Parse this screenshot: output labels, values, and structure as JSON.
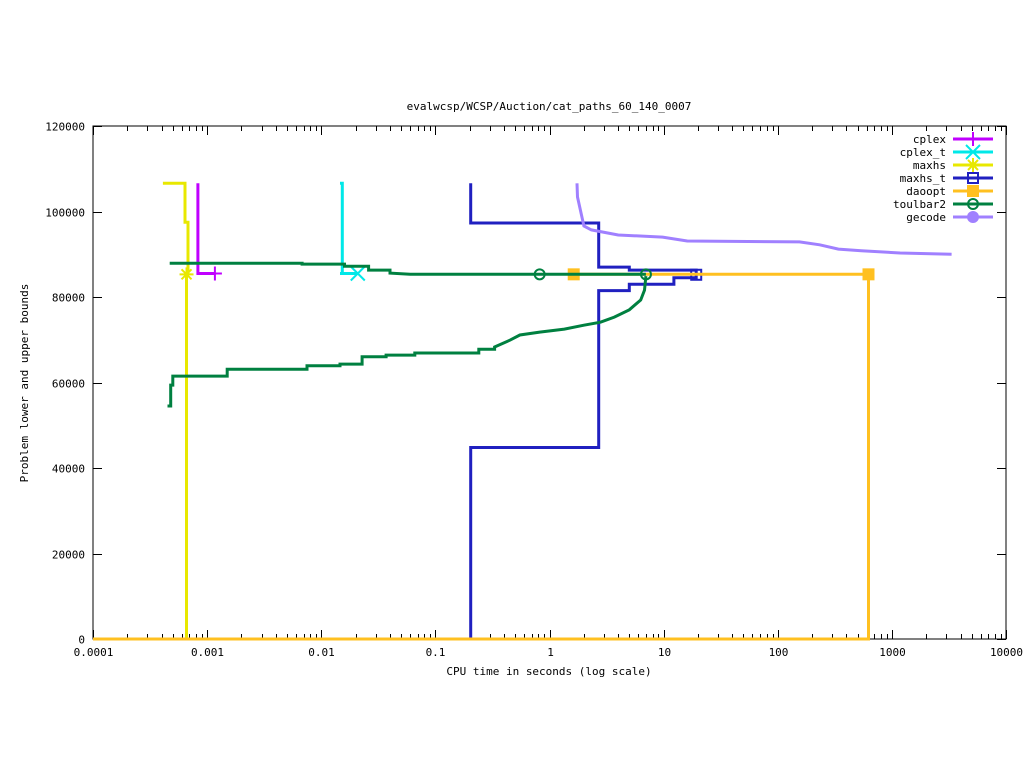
{
  "chart_data": {
    "type": "line",
    "title": "evalwcsp/WCSP/Auction/cat_paths_60_140_0007",
    "xlabel": "CPU time in seconds (log scale)",
    "ylabel": "Problem lower and upper bounds",
    "xscale": "log",
    "xlim": [
      0.0001,
      10000
    ],
    "ylim": [
      0,
      120000
    ],
    "xticks": [
      "0.0001",
      "0.001",
      "0.01",
      "0.1",
      "1",
      "10",
      "100",
      "1000",
      "10000"
    ],
    "yticks": [
      "0",
      "20000",
      "40000",
      "60000",
      "80000",
      "100000",
      "120000"
    ],
    "grid": false,
    "legend_position": "top-right",
    "series": [
      {
        "name": "cplex",
        "color": "#c000ff",
        "marker": "plus",
        "paths": [
          [
            [
              0.00083,
              106600
            ],
            [
              0.00083,
              85500
            ],
            [
              0.00117,
              85500
            ]
          ]
        ],
        "markers": [
          [
            0.00117,
            85500
          ]
        ]
      },
      {
        "name": "cplex_t",
        "color": "#00e8e8",
        "marker": "cross",
        "paths": [
          [
            [
              0.0146,
              106600
            ],
            [
              0.0153,
              106600
            ],
            [
              0.0153,
              85500
            ],
            [
              0.0146,
              85500
            ],
            [
              0.0209,
              85500
            ]
          ]
        ],
        "markers": [
          [
            0.0209,
            85500
          ]
        ]
      },
      {
        "name": "maxhs",
        "color": "#e8e800",
        "marker": "star",
        "paths": [
          [
            [
              0.00041,
              106600
            ],
            [
              0.00064,
              106600
            ],
            [
              0.00064,
              97500
            ],
            [
              0.00068,
              97500
            ],
            [
              0.00068,
              85300
            ]
          ],
          [
            [
              0.0001,
              0
            ],
            [
              0.00066,
              0
            ],
            [
              0.00066,
              85300
            ]
          ]
        ],
        "markers": [
          [
            0.00066,
            85300
          ]
        ]
      },
      {
        "name": "maxhs_t",
        "color": "#2020c0",
        "marker": "box",
        "paths": [
          [
            [
              0.204,
              106600
            ],
            [
              0.204,
              97300
            ],
            [
              2.7,
              97300
            ],
            [
              2.7,
              87000
            ],
            [
              5.0,
              87000
            ],
            [
              5.0,
              86300
            ],
            [
              19.3,
              86300
            ],
            [
              19.3,
              85200
            ]
          ],
          [
            [
              0.204,
              0
            ],
            [
              0.204,
              44800
            ],
            [
              2.7,
              44800
            ],
            [
              2.7,
              81500
            ],
            [
              5.0,
              81500
            ],
            [
              5.0,
              83000
            ],
            [
              12.3,
              83000
            ],
            [
              12.3,
              84500
            ],
            [
              19.3,
              84500
            ],
            [
              19.3,
              85200
            ]
          ]
        ],
        "markers": [
          [
            19.3,
            85200
          ]
        ]
      },
      {
        "name": "daoopt",
        "color": "#ffc020",
        "marker": "filled-box",
        "paths": [
          [
            [
              1.63,
              85300
            ],
            [
              624,
              85300
            ]
          ],
          [
            [
              0.0001,
              0
            ],
            [
              624,
              0
            ],
            [
              624,
              85300
            ]
          ]
        ],
        "markers": [
          [
            1.63,
            85300
          ],
          [
            624,
            85300
          ]
        ]
      },
      {
        "name": "toulbar2",
        "color": "#008040",
        "marker": "circle",
        "paths": [
          [
            [
              0.00047,
              87900
            ],
            [
              0.0068,
              87900
            ],
            [
              0.0068,
              87700
            ],
            [
              0.016,
              87700
            ],
            [
              0.016,
              87200
            ],
            [
              0.026,
              87200
            ],
            [
              0.026,
              86300
            ],
            [
              0.04,
              86300
            ],
            [
              0.04,
              85600
            ],
            [
              0.06,
              85300
            ],
            [
              7.0,
              85300
            ]
          ],
          [
            [
              0.00045,
              54500
            ],
            [
              0.00048,
              54500
            ],
            [
              0.00048,
              59400
            ],
            [
              0.0005,
              59400
            ],
            [
              0.0005,
              61500
            ],
            [
              0.0015,
              61500
            ],
            [
              0.0015,
              63100
            ],
            [
              0.0075,
              63100
            ],
            [
              0.0075,
              63900
            ],
            [
              0.0146,
              63900
            ],
            [
              0.0146,
              64300
            ],
            [
              0.0228,
              64300
            ],
            [
              0.0228,
              66000
            ],
            [
              0.037,
              66000
            ],
            [
              0.037,
              66400
            ],
            [
              0.066,
              66400
            ],
            [
              0.066,
              66900
            ],
            [
              0.24,
              66900
            ],
            [
              0.24,
              67800
            ],
            [
              0.33,
              67800
            ],
            [
              0.33,
              68300
            ],
            [
              0.45,
              69900
            ],
            [
              0.55,
              71100
            ],
            [
              0.82,
              71800
            ],
            [
              1.35,
              72500
            ],
            [
              2.0,
              73400
            ],
            [
              2.8,
              74100
            ],
            [
              3.7,
              75300
            ],
            [
              5.0,
              77000
            ],
            [
              6.3,
              79300
            ],
            [
              6.8,
              81600
            ],
            [
              7.0,
              84900
            ]
          ]
        ],
        "markers": [
          [
            0.82,
            85300
          ],
          [
            7.0,
            85300
          ]
        ]
      },
      {
        "name": "gecode",
        "color": "#a080ff",
        "marker": "filled-circle",
        "paths": [
          [
            [
              1.74,
              106600
            ],
            [
              1.76,
              103400
            ],
            [
              1.95,
              98000
            ],
            [
              2.0,
              96600
            ],
            [
              2.33,
              95700
            ],
            [
              4.0,
              94500
            ],
            [
              9.8,
              94000
            ],
            [
              16.1,
              93100
            ],
            [
              155,
              92900
            ],
            [
              233,
              92200
            ],
            [
              340,
              91200
            ],
            [
              540,
              90800
            ],
            [
              1180,
              90300
            ],
            [
              3340,
              90000
            ]
          ]
        ],
        "markers": []
      }
    ]
  }
}
